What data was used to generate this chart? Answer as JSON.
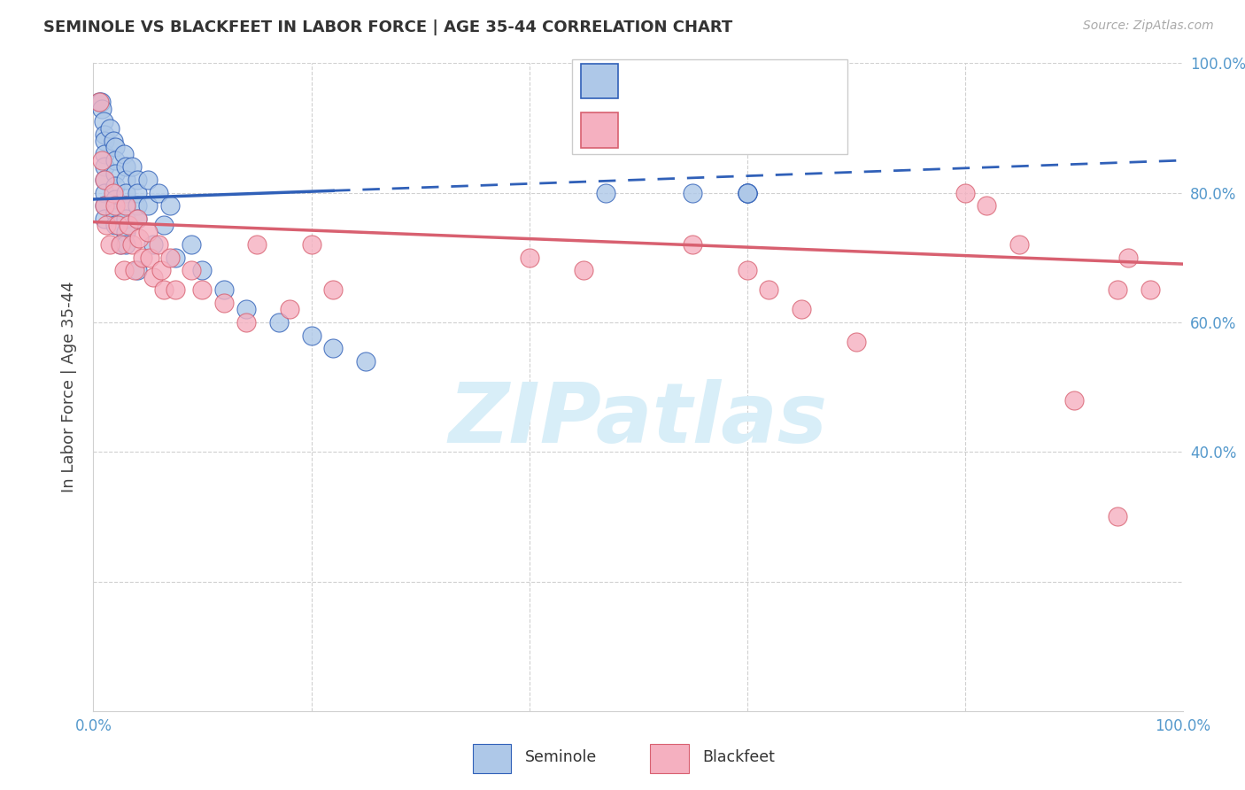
{
  "title": "SEMINOLE VS BLACKFEET IN LABOR FORCE | AGE 35-44 CORRELATION CHART",
  "source": "Source: ZipAtlas.com",
  "ylabel": "In Labor Force | Age 35-44",
  "seminole_color": "#aec8e8",
  "blackfeet_color": "#f5b0c0",
  "seminole_line_color": "#3060b8",
  "blackfeet_line_color": "#d86070",
  "watermark_color": "#d8eef8",
  "seminole_x": [
    0.005,
    0.007,
    0.008,
    0.009,
    0.01,
    0.01,
    0.01,
    0.01,
    0.01,
    0.01,
    0.01,
    0.01,
    0.015,
    0.018,
    0.02,
    0.02,
    0.02,
    0.02,
    0.02,
    0.02,
    0.02,
    0.025,
    0.028,
    0.03,
    0.03,
    0.03,
    0.03,
    0.03,
    0.03,
    0.03,
    0.035,
    0.04,
    0.04,
    0.04,
    0.04,
    0.04,
    0.05,
    0.05,
    0.055,
    0.06,
    0.065,
    0.07,
    0.075,
    0.09,
    0.1,
    0.12,
    0.14,
    0.17,
    0.2,
    0.22,
    0.25,
    0.47,
    0.55,
    0.6,
    0.6,
    0.6,
    0.6
  ],
  "seminole_y": [
    0.94,
    0.94,
    0.93,
    0.91,
    0.89,
    0.88,
    0.86,
    0.84,
    0.82,
    0.8,
    0.78,
    0.76,
    0.9,
    0.88,
    0.87,
    0.85,
    0.83,
    0.81,
    0.79,
    0.77,
    0.75,
    0.72,
    0.86,
    0.84,
    0.82,
    0.8,
    0.78,
    0.76,
    0.74,
    0.72,
    0.84,
    0.82,
    0.8,
    0.78,
    0.76,
    0.68,
    0.82,
    0.78,
    0.72,
    0.8,
    0.75,
    0.78,
    0.7,
    0.72,
    0.68,
    0.65,
    0.62,
    0.6,
    0.58,
    0.56,
    0.54,
    0.8,
    0.8,
    0.8,
    0.8,
    0.8,
    0.8
  ],
  "blackfeet_x": [
    0.005,
    0.008,
    0.01,
    0.01,
    0.012,
    0.015,
    0.018,
    0.02,
    0.022,
    0.025,
    0.028,
    0.03,
    0.032,
    0.035,
    0.038,
    0.04,
    0.042,
    0.045,
    0.05,
    0.052,
    0.055,
    0.06,
    0.062,
    0.065,
    0.07,
    0.075,
    0.09,
    0.1,
    0.12,
    0.14,
    0.15,
    0.18,
    0.2,
    0.22,
    0.4,
    0.45,
    0.55,
    0.6,
    0.62,
    0.65,
    0.7,
    0.8,
    0.82,
    0.85,
    0.9,
    0.94,
    0.94,
    0.95,
    0.97
  ],
  "blackfeet_y": [
    0.94,
    0.85,
    0.82,
    0.78,
    0.75,
    0.72,
    0.8,
    0.78,
    0.75,
    0.72,
    0.68,
    0.78,
    0.75,
    0.72,
    0.68,
    0.76,
    0.73,
    0.7,
    0.74,
    0.7,
    0.67,
    0.72,
    0.68,
    0.65,
    0.7,
    0.65,
    0.68,
    0.65,
    0.63,
    0.6,
    0.72,
    0.62,
    0.72,
    0.65,
    0.7,
    0.68,
    0.72,
    0.68,
    0.65,
    0.62,
    0.57,
    0.8,
    0.78,
    0.72,
    0.48,
    0.65,
    0.3,
    0.7,
    0.65
  ],
  "xlim": [
    0.0,
    1.0
  ],
  "ylim": [
    0.0,
    1.0
  ],
  "ytick_pos": [
    0.2,
    0.4,
    0.6,
    0.8,
    1.0
  ],
  "ytick_right_labels": [
    "",
    "40.0%",
    "60.0%",
    "80.0%",
    "100.0%"
  ],
  "xtick_pos": [
    0.0,
    0.2,
    0.4,
    0.6,
    0.8,
    1.0
  ],
  "xtick_labels": [
    "0.0%",
    "",
    "",
    "",
    "",
    "100.0%"
  ],
  "tick_color": "#5599cc",
  "grid_color": "#d0d0d0"
}
